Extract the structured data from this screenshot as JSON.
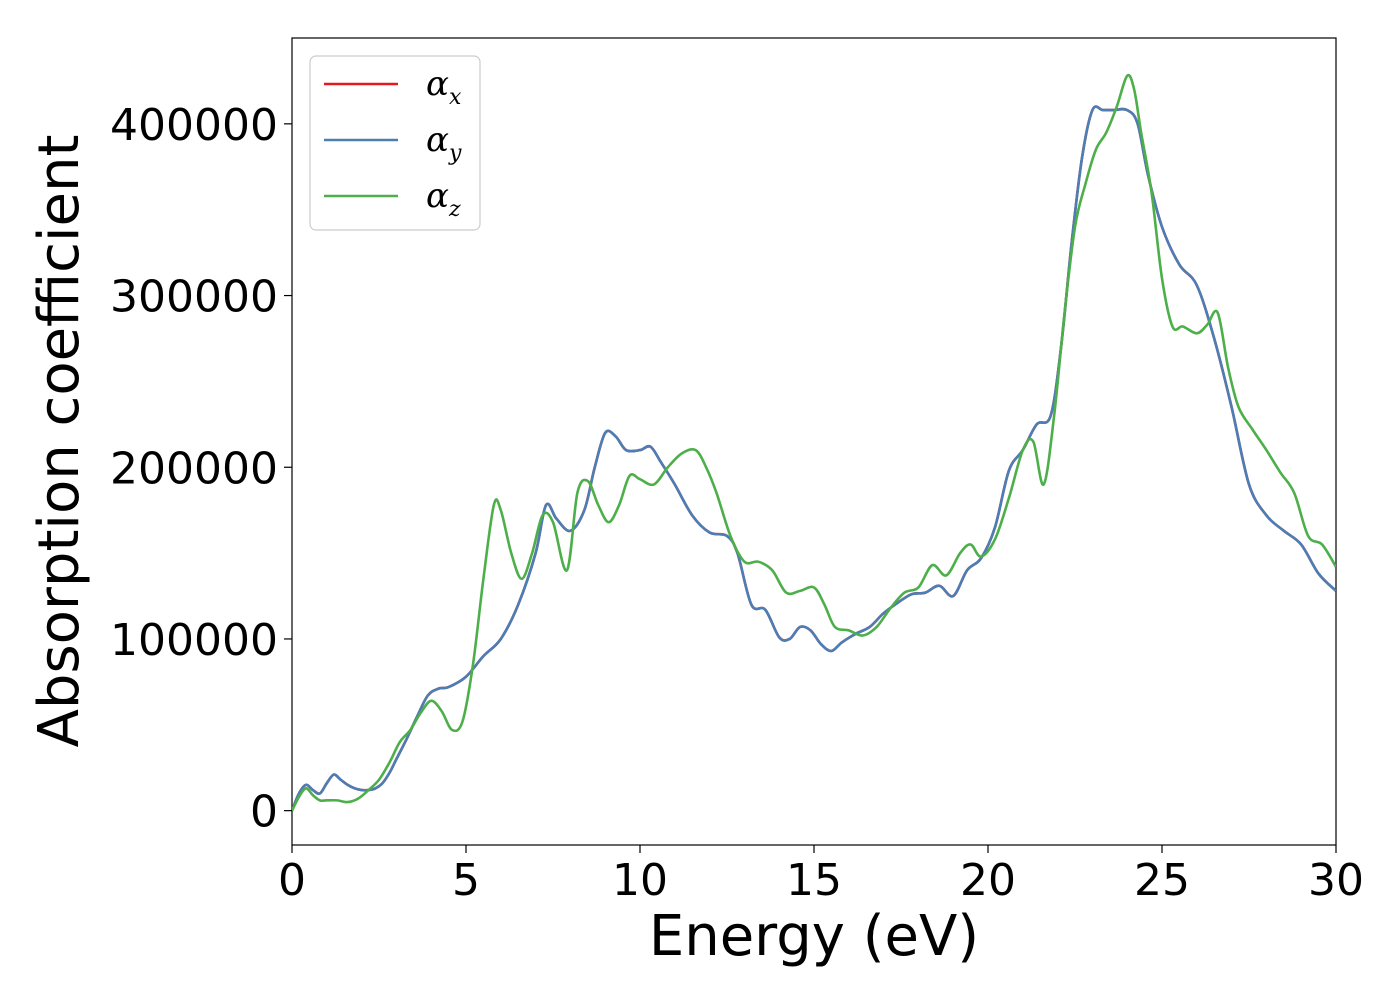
{
  "chart_data": {
    "type": "line",
    "title": "",
    "xlabel": "Energy (eV)",
    "ylabel": "Absorption coefficient",
    "xlim": [
      0,
      30
    ],
    "ylim": [
      -20000,
      450000
    ],
    "xticks": [
      0,
      5,
      10,
      15,
      20,
      25,
      30
    ],
    "xtick_labels": [
      "0",
      "5",
      "10",
      "15",
      "20",
      "25",
      "30"
    ],
    "yticks": [
      0,
      100000,
      200000,
      300000,
      400000
    ],
    "ytick_labels": [
      "0",
      "100000",
      "200000",
      "300000",
      "400000"
    ],
    "grid": false,
    "legend_position": "top-left",
    "series": [
      {
        "name": "αx",
        "symbol": "α",
        "subscript": "x",
        "color": "#e41a1c",
        "x": [
          0,
          0.2,
          0.4,
          0.6,
          0.8,
          1.0,
          1.2,
          1.4,
          1.6,
          1.8,
          2.0,
          2.2,
          2.4,
          2.6,
          2.8,
          3.0,
          3.3,
          3.6,
          3.9,
          4.2,
          4.5,
          5.0,
          5.5,
          6.0,
          6.5,
          7.0,
          7.3,
          7.6,
          8.0,
          8.4,
          8.7,
          9.0,
          9.3,
          9.6,
          10.0,
          10.3,
          10.6,
          11.0,
          11.5,
          12.0,
          12.5,
          12.8,
          13.2,
          13.6,
          14.0,
          14.3,
          14.6,
          14.9,
          15.2,
          15.5,
          15.8,
          16.2,
          16.6,
          17.0,
          17.4,
          17.8,
          18.2,
          18.6,
          19.0,
          19.4,
          19.8,
          20.2,
          20.6,
          21.0,
          21.4,
          21.8,
          22.1,
          22.4,
          22.7,
          23.0,
          23.3,
          23.6,
          24.0,
          24.3,
          24.6,
          25.0,
          25.5,
          26.0,
          26.5,
          27.0,
          27.5,
          28.0,
          28.5,
          29.0,
          29.5,
          30.0
        ],
        "values": [
          0,
          10000,
          15000,
          12000,
          10000,
          16000,
          21000,
          18000,
          15000,
          13000,
          12000,
          12000,
          13000,
          16000,
          22000,
          30000,
          42000,
          55000,
          67000,
          71000,
          72000,
          78000,
          90000,
          100000,
          120000,
          150000,
          178000,
          170000,
          163000,
          175000,
          200000,
          220000,
          218000,
          210000,
          210000,
          212000,
          203000,
          190000,
          172000,
          162000,
          160000,
          150000,
          120000,
          117000,
          101000,
          100000,
          107000,
          105000,
          97000,
          93000,
          98000,
          103000,
          107000,
          115000,
          121000,
          126000,
          127000,
          131000,
          125000,
          140000,
          147000,
          165000,
          198000,
          210000,
          225000,
          230000,
          270000,
          330000,
          380000,
          408000,
          408000,
          408000,
          408000,
          400000,
          370000,
          340000,
          318000,
          306000,
          275000,
          235000,
          190000,
          172000,
          163000,
          155000,
          138000,
          128000
        ]
      },
      {
        "name": "αy",
        "symbol": "α",
        "subscript": "y",
        "color": "#4a7eb5",
        "x": [
          0,
          0.2,
          0.4,
          0.6,
          0.8,
          1.0,
          1.2,
          1.4,
          1.6,
          1.8,
          2.0,
          2.2,
          2.4,
          2.6,
          2.8,
          3.0,
          3.3,
          3.6,
          3.9,
          4.2,
          4.5,
          5.0,
          5.5,
          6.0,
          6.5,
          7.0,
          7.3,
          7.6,
          8.0,
          8.4,
          8.7,
          9.0,
          9.3,
          9.6,
          10.0,
          10.3,
          10.6,
          11.0,
          11.5,
          12.0,
          12.5,
          12.8,
          13.2,
          13.6,
          14.0,
          14.3,
          14.6,
          14.9,
          15.2,
          15.5,
          15.8,
          16.2,
          16.6,
          17.0,
          17.4,
          17.8,
          18.2,
          18.6,
          19.0,
          19.4,
          19.8,
          20.2,
          20.6,
          21.0,
          21.4,
          21.8,
          22.1,
          22.4,
          22.7,
          23.0,
          23.3,
          23.6,
          24.0,
          24.3,
          24.6,
          25.0,
          25.5,
          26.0,
          26.5,
          27.0,
          27.5,
          28.0,
          28.5,
          29.0,
          29.5,
          30.0
        ],
        "values": [
          0,
          10000,
          15000,
          12000,
          10000,
          16000,
          21000,
          18000,
          15000,
          13000,
          12000,
          12000,
          13000,
          16000,
          22000,
          30000,
          42000,
          55000,
          67000,
          71000,
          72000,
          78000,
          90000,
          100000,
          120000,
          150000,
          178000,
          170000,
          163000,
          175000,
          200000,
          220000,
          218000,
          210000,
          210000,
          212000,
          203000,
          190000,
          172000,
          162000,
          160000,
          150000,
          120000,
          117000,
          101000,
          100000,
          107000,
          105000,
          97000,
          93000,
          98000,
          103000,
          107000,
          115000,
          121000,
          126000,
          127000,
          131000,
          125000,
          140000,
          147000,
          165000,
          198000,
          210000,
          225000,
          230000,
          270000,
          330000,
          380000,
          408000,
          408000,
          408000,
          408000,
          400000,
          370000,
          340000,
          318000,
          306000,
          275000,
          235000,
          190000,
          172000,
          163000,
          155000,
          138000,
          128000
        ]
      },
      {
        "name": "αz",
        "symbol": "α",
        "subscript": "z",
        "color": "#4daf4a",
        "x": [
          0,
          0.2,
          0.4,
          0.6,
          0.8,
          1.0,
          1.3,
          1.6,
          1.9,
          2.2,
          2.5,
          2.8,
          3.1,
          3.4,
          3.7,
          4.0,
          4.3,
          4.6,
          4.9,
          5.2,
          5.5,
          5.8,
          6.0,
          6.3,
          6.6,
          6.9,
          7.2,
          7.5,
          7.9,
          8.2,
          8.5,
          8.8,
          9.1,
          9.4,
          9.7,
          10.0,
          10.4,
          10.8,
          11.2,
          11.6,
          11.9,
          12.2,
          12.6,
          13.0,
          13.4,
          13.8,
          14.2,
          14.6,
          15.0,
          15.3,
          15.6,
          16.0,
          16.4,
          16.8,
          17.2,
          17.6,
          18.0,
          18.4,
          18.8,
          19.2,
          19.5,
          19.8,
          20.2,
          20.6,
          21.0,
          21.3,
          21.6,
          21.9,
          22.2,
          22.5,
          22.8,
          23.1,
          23.4,
          23.7,
          24.0,
          24.2,
          24.4,
          24.7,
          25.0,
          25.3,
          25.6,
          26.0,
          26.3,
          26.6,
          26.9,
          27.2,
          27.6,
          28.0,
          28.4,
          28.8,
          29.2,
          29.6,
          30.0
        ],
        "values": [
          0,
          8000,
          13000,
          9000,
          6000,
          6000,
          6000,
          5000,
          7000,
          12000,
          18000,
          28000,
          40000,
          47000,
          57000,
          64000,
          58000,
          47000,
          52000,
          85000,
          135000,
          178000,
          175000,
          150000,
          135000,
          150000,
          172000,
          168000,
          140000,
          185000,
          192000,
          178000,
          168000,
          178000,
          195000,
          193000,
          190000,
          200000,
          208000,
          210000,
          200000,
          185000,
          160000,
          145000,
          145000,
          140000,
          127000,
          128000,
          130000,
          120000,
          107000,
          105000,
          102000,
          107000,
          118000,
          127000,
          130000,
          143000,
          137000,
          150000,
          155000,
          148000,
          158000,
          182000,
          210000,
          215000,
          190000,
          230000,
          290000,
          340000,
          365000,
          385000,
          395000,
          410000,
          428000,
          420000,
          395000,
          360000,
          310000,
          282000,
          282000,
          278000,
          283000,
          290000,
          258000,
          235000,
          222000,
          210000,
          197000,
          185000,
          160000,
          155000,
          142000
        ]
      }
    ]
  }
}
